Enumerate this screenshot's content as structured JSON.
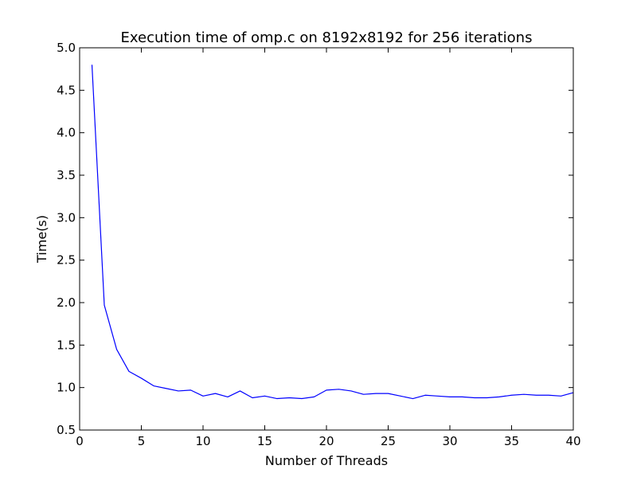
{
  "chart_data": {
    "type": "line",
    "title": "Execution time of omp.c on 8192x8192 for 256 iterations",
    "xlabel": "Number of Threads",
    "ylabel": "Time(s)",
    "xlim": [
      0,
      40
    ],
    "ylim": [
      0.5,
      5.0
    ],
    "xticks": [
      0,
      5,
      10,
      15,
      20,
      25,
      30,
      35,
      40
    ],
    "xtick_labels": [
      "0",
      "5",
      "10",
      "15",
      "20",
      "25",
      "30",
      "35",
      "40"
    ],
    "yticks": [
      0.5,
      1.0,
      1.5,
      2.0,
      2.5,
      3.0,
      3.5,
      4.0,
      4.5,
      5.0
    ],
    "ytick_labels": [
      "0.5",
      "1.0",
      "1.5",
      "2.0",
      "2.5",
      "3.0",
      "3.5",
      "4.0",
      "4.5",
      "5.0"
    ],
    "grid": false,
    "series": [
      {
        "color": "#0000ff",
        "x": [
          1,
          2,
          3,
          4,
          5,
          6,
          7,
          8,
          9,
          10,
          11,
          12,
          13,
          14,
          15,
          16,
          17,
          18,
          19,
          20,
          21,
          22,
          23,
          24,
          25,
          26,
          27,
          28,
          29,
          30,
          31,
          32,
          33,
          34,
          35,
          36,
          37,
          38,
          39,
          40
        ],
        "values": [
          4.8,
          1.97,
          1.45,
          1.19,
          1.11,
          1.02,
          0.99,
          0.96,
          0.97,
          0.9,
          0.93,
          0.89,
          0.96,
          0.88,
          0.9,
          0.87,
          0.88,
          0.87,
          0.89,
          0.97,
          0.98,
          0.96,
          0.92,
          0.93,
          0.93,
          0.9,
          0.87,
          0.91,
          0.9,
          0.89,
          0.89,
          0.88,
          0.88,
          0.89,
          0.91,
          0.92,
          0.91,
          0.91,
          0.9,
          0.94
        ]
      }
    ]
  }
}
